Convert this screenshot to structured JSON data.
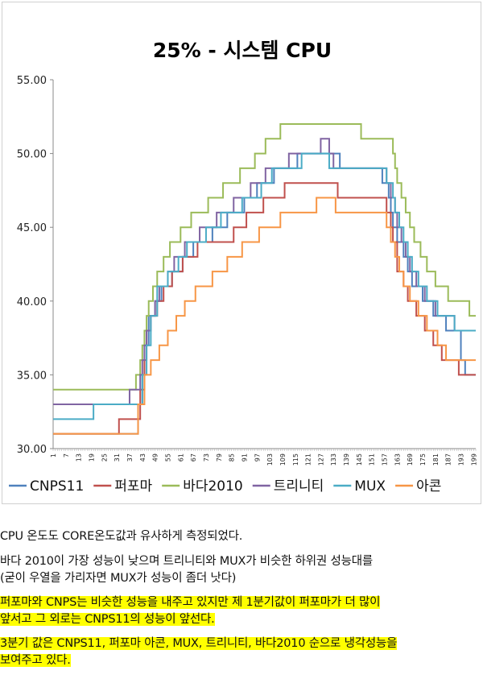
{
  "chart_data": {
    "type": "line",
    "title": "25% - 시스템 CPU",
    "xlabel": "",
    "ylabel": "",
    "ylim": [
      30,
      55
    ],
    "xlim": [
      1,
      200
    ],
    "y_ticks": [
      "30.00",
      "35.00",
      "40.00",
      "45.00",
      "50.00",
      "55.00"
    ],
    "x_ticks": [
      "1",
      "7",
      "13",
      "19",
      "25",
      "31",
      "37",
      "43",
      "49",
      "55",
      "61",
      "67",
      "73",
      "79",
      "85",
      "91",
      "97",
      "103",
      "109",
      "115",
      "121",
      "127",
      "133",
      "139",
      "145",
      "151",
      "157",
      "163",
      "169",
      "175",
      "181",
      "187",
      "193",
      "199"
    ],
    "legend_position": "bottom",
    "grid": false,
    "series": [
      {
        "name": "CNPS11",
        "color": "#4F81BD",
        "steps": [
          [
            1,
            31
          ],
          [
            41,
            33
          ],
          [
            43,
            35
          ],
          [
            44,
            37
          ],
          [
            46,
            39
          ],
          [
            49,
            40
          ],
          [
            52,
            41
          ],
          [
            57,
            42
          ],
          [
            62,
            43
          ],
          [
            67,
            44
          ],
          [
            76,
            45
          ],
          [
            83,
            46
          ],
          [
            91,
            47
          ],
          [
            97,
            48
          ],
          [
            105,
            49
          ],
          [
            116,
            50
          ],
          [
            136,
            49
          ],
          [
            156,
            48
          ],
          [
            159,
            47
          ],
          [
            160,
            46
          ],
          [
            161,
            45
          ],
          [
            163,
            44
          ],
          [
            166,
            43
          ],
          [
            168,
            42
          ],
          [
            170,
            41
          ],
          [
            175,
            40
          ],
          [
            180,
            39
          ],
          [
            186,
            38
          ],
          [
            193,
            36
          ],
          [
            195,
            35
          ]
        ]
      },
      {
        "name": "퍼포마",
        "color": "#C0504D",
        "steps": [
          [
            1,
            31
          ],
          [
            32,
            32
          ],
          [
            42,
            34
          ],
          [
            44,
            36
          ],
          [
            45,
            38
          ],
          [
            47,
            39
          ],
          [
            50,
            40
          ],
          [
            53,
            41
          ],
          [
            57,
            42
          ],
          [
            62,
            43
          ],
          [
            69,
            44
          ],
          [
            86,
            45
          ],
          [
            92,
            46
          ],
          [
            100,
            47
          ],
          [
            110,
            48
          ],
          [
            135,
            47
          ],
          [
            158,
            46
          ],
          [
            160,
            45
          ],
          [
            161,
            44
          ],
          [
            163,
            42
          ],
          [
            166,
            41
          ],
          [
            168,
            40
          ],
          [
            172,
            39
          ],
          [
            176,
            38
          ],
          [
            180,
            37
          ],
          [
            184,
            36
          ],
          [
            192,
            35
          ]
        ]
      },
      {
        "name": "바다2010",
        "color": "#9BBB59",
        "steps": [
          [
            1,
            34
          ],
          [
            40,
            35
          ],
          [
            42,
            36
          ],
          [
            43,
            37
          ],
          [
            44,
            38
          ],
          [
            45,
            39
          ],
          [
            46,
            40
          ],
          [
            48,
            41
          ],
          [
            50,
            42
          ],
          [
            53,
            43
          ],
          [
            56,
            44
          ],
          [
            61,
            45
          ],
          [
            66,
            46
          ],
          [
            74,
            47
          ],
          [
            81,
            48
          ],
          [
            89,
            49
          ],
          [
            96,
            50
          ],
          [
            101,
            51
          ],
          [
            108,
            52
          ],
          [
            146,
            51
          ],
          [
            161,
            50
          ],
          [
            162,
            49
          ],
          [
            163,
            48
          ],
          [
            165,
            47
          ],
          [
            167,
            46
          ],
          [
            169,
            45
          ],
          [
            171,
            44
          ],
          [
            174,
            43
          ],
          [
            177,
            42
          ],
          [
            181,
            41
          ],
          [
            187,
            40
          ],
          [
            197,
            39
          ]
        ]
      },
      {
        "name": "트리니티",
        "color": "#8064A2",
        "steps": [
          [
            1,
            33
          ],
          [
            37,
            34
          ],
          [
            42,
            35
          ],
          [
            43,
            36
          ],
          [
            44,
            37
          ],
          [
            45,
            38
          ],
          [
            47,
            39
          ],
          [
            49,
            40
          ],
          [
            51,
            41
          ],
          [
            55,
            42
          ],
          [
            58,
            43
          ],
          [
            63,
            44
          ],
          [
            70,
            45
          ],
          [
            78,
            46
          ],
          [
            86,
            47
          ],
          [
            94,
            48
          ],
          [
            101,
            49
          ],
          [
            112,
            50
          ],
          [
            127,
            51
          ],
          [
            131,
            50
          ],
          [
            133,
            49
          ],
          [
            158,
            48
          ],
          [
            160,
            47
          ],
          [
            162,
            46
          ],
          [
            163,
            45
          ],
          [
            165,
            44
          ],
          [
            167,
            43
          ],
          [
            169,
            42
          ],
          [
            172,
            41
          ],
          [
            176,
            40
          ],
          [
            181,
            39
          ],
          [
            190,
            38
          ]
        ]
      },
      {
        "name": "MUX",
        "color": "#4BACC6",
        "steps": [
          [
            1,
            32
          ],
          [
            20,
            33
          ],
          [
            43,
            35
          ],
          [
            45,
            37
          ],
          [
            47,
            39
          ],
          [
            50,
            41
          ],
          [
            55,
            42
          ],
          [
            60,
            43
          ],
          [
            64,
            44
          ],
          [
            73,
            45
          ],
          [
            80,
            46
          ],
          [
            90,
            47
          ],
          [
            99,
            48
          ],
          [
            104,
            49
          ],
          [
            118,
            50
          ],
          [
            131,
            49
          ],
          [
            158,
            48
          ],
          [
            161,
            47
          ],
          [
            162,
            46
          ],
          [
            164,
            45
          ],
          [
            166,
            44
          ],
          [
            168,
            43
          ],
          [
            170,
            42
          ],
          [
            173,
            41
          ],
          [
            177,
            40
          ],
          [
            182,
            39
          ],
          [
            190,
            38
          ]
        ]
      },
      {
        "name": "아콘",
        "color": "#F79646",
        "steps": [
          [
            1,
            31
          ],
          [
            41,
            33
          ],
          [
            44,
            35
          ],
          [
            47,
            36
          ],
          [
            51,
            37
          ],
          [
            55,
            38
          ],
          [
            59,
            39
          ],
          [
            63,
            40
          ],
          [
            68,
            41
          ],
          [
            76,
            42
          ],
          [
            83,
            43
          ],
          [
            90,
            44
          ],
          [
            98,
            45
          ],
          [
            108,
            46
          ],
          [
            125,
            47
          ],
          [
            134,
            46
          ],
          [
            158,
            45
          ],
          [
            160,
            44
          ],
          [
            162,
            43
          ],
          [
            164,
            42
          ],
          [
            166,
            41
          ],
          [
            169,
            40
          ],
          [
            173,
            39
          ],
          [
            177,
            38
          ],
          [
            182,
            37
          ],
          [
            186,
            36
          ]
        ]
      }
    ]
  },
  "paragraphs": [
    {
      "lines": [
        "CPU 온도도 CORE온도값과 유사하게 측정되었다."
      ],
      "highlight": false
    },
    {
      "lines": [
        "바다 2010이 가장 성능이 낮으며 트리니티와 MUX가 비슷한 하위권 성능대를",
        "(굳이 우열을 가리자면 MUX가 성능이 좀더 낫다)"
      ],
      "highlight": false
    },
    {
      "lines": [
        "퍼포마와 CNPS는 비슷한 성능을 내주고 있지만 제 1분기값이 퍼포마가 더 많이",
        "앞서고 그 외로는 CNPS11의 성능이 앞선다."
      ],
      "highlight": true
    },
    {
      "lines": [
        "3분기 값은 CNPS11, 퍼포마 아콘, MUX, 트리니티, 바다2010 순으로 냉각성능을",
        "보여주고 있다."
      ],
      "highlight": true
    }
  ]
}
